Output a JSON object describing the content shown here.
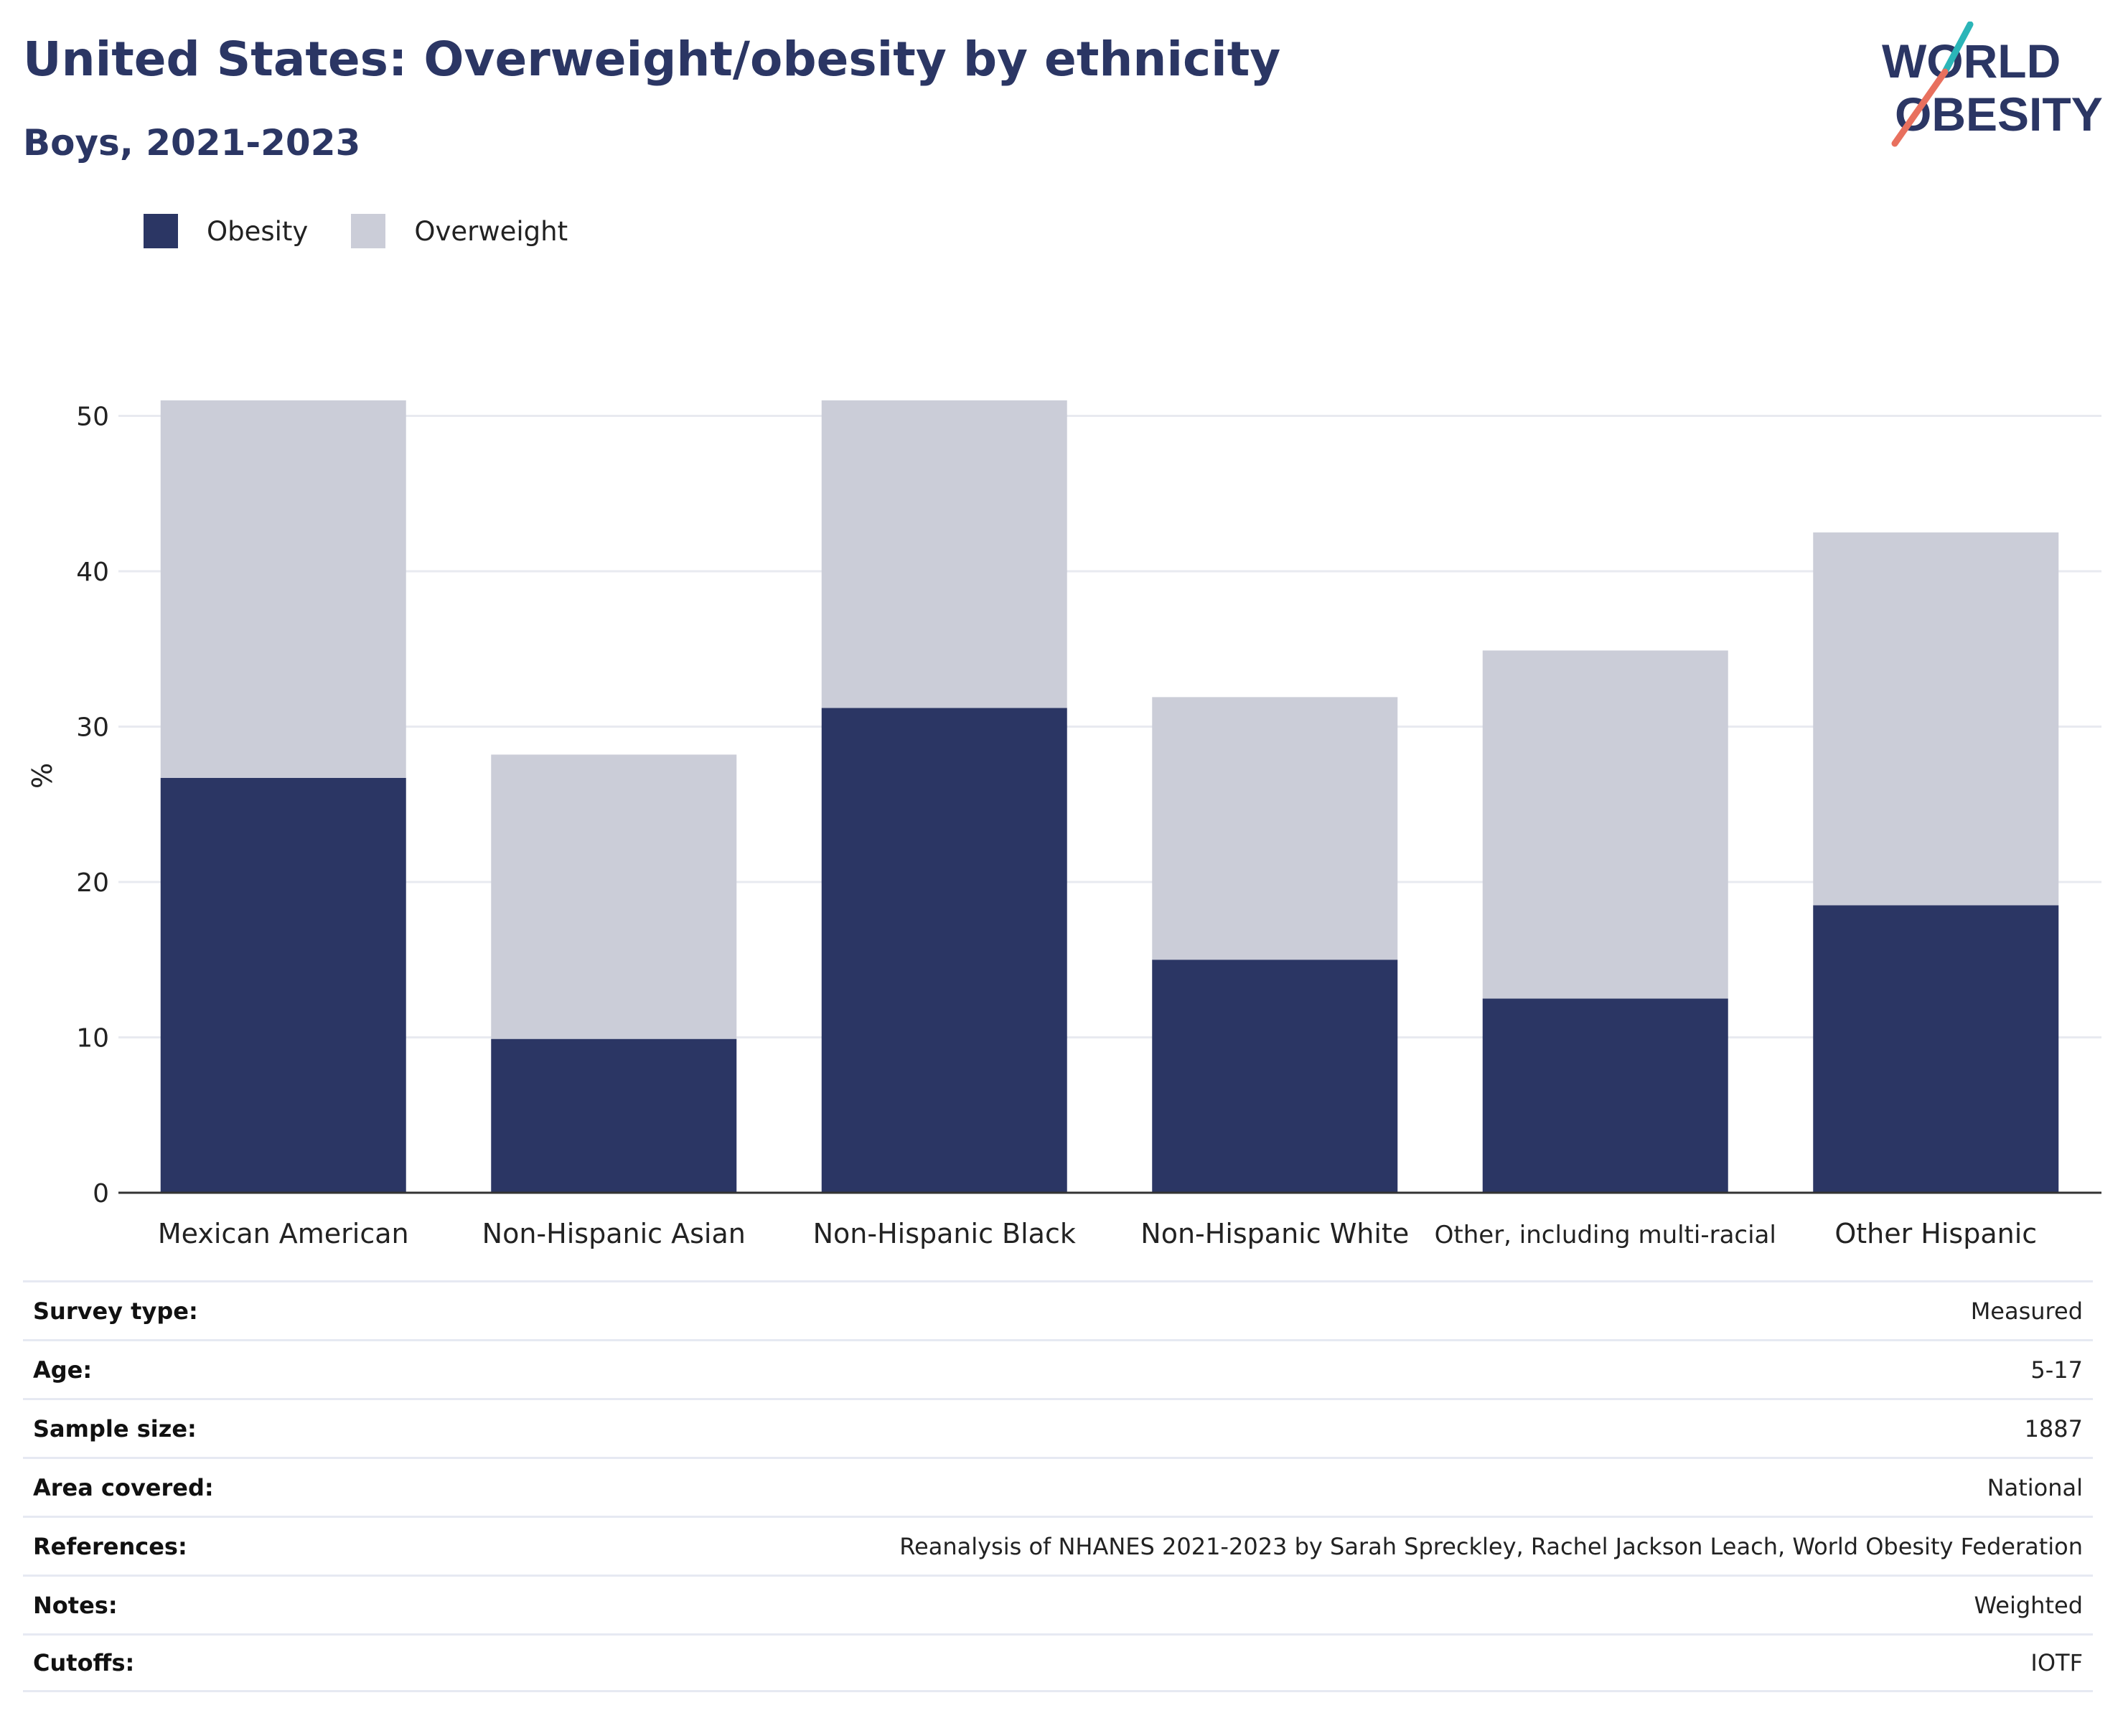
{
  "header": {
    "title": "United States: Overweight/obesity by ethnicity",
    "subtitle": "Boys, 2021-2023"
  },
  "logo": {
    "line1": "WORLD",
    "line2": "OBESITY",
    "colors": {
      "text": "#2b3664",
      "slash_top": "#2bb5b8",
      "slash_bottom": "#e8705e"
    }
  },
  "colors": {
    "obesity": "#2b3664",
    "overweight": "#cbcdd8",
    "grid": "#e8eaf0",
    "axis": "#333333"
  },
  "chart_data": {
    "type": "bar",
    "stacked": true,
    "categories": [
      "Mexican American",
      "Non-Hispanic Asian",
      "Non-Hispanic Black",
      "Non-Hispanic White",
      "Other, including multi-racial",
      "Other Hispanic"
    ],
    "series": [
      {
        "name": "Obesity",
        "values": [
          26.7,
          9.9,
          31.2,
          15.0,
          12.5,
          18.5
        ]
      },
      {
        "name": "Overweight",
        "values": [
          24.3,
          18.3,
          19.8,
          16.9,
          22.4,
          24.0
        ]
      }
    ],
    "ylabel": "%",
    "ylim": [
      0,
      51
    ],
    "yticks": [
      0,
      10,
      20,
      30,
      40,
      50
    ],
    "grid": true,
    "legend_position": "top-left"
  },
  "info_table": [
    {
      "label": "Survey type:",
      "value": "Measured"
    },
    {
      "label": "Age:",
      "value": "5-17"
    },
    {
      "label": "Sample size:",
      "value": "1887"
    },
    {
      "label": "Area covered:",
      "value": "National"
    },
    {
      "label": "References:",
      "value": "Reanalysis of NHANES 2021-2023 by Sarah Spreckley, Rachel Jackson Leach, World Obesity Federation"
    },
    {
      "label": "Notes:",
      "value": "Weighted"
    },
    {
      "label": "Cutoffs:",
      "value": "IOTF"
    }
  ]
}
